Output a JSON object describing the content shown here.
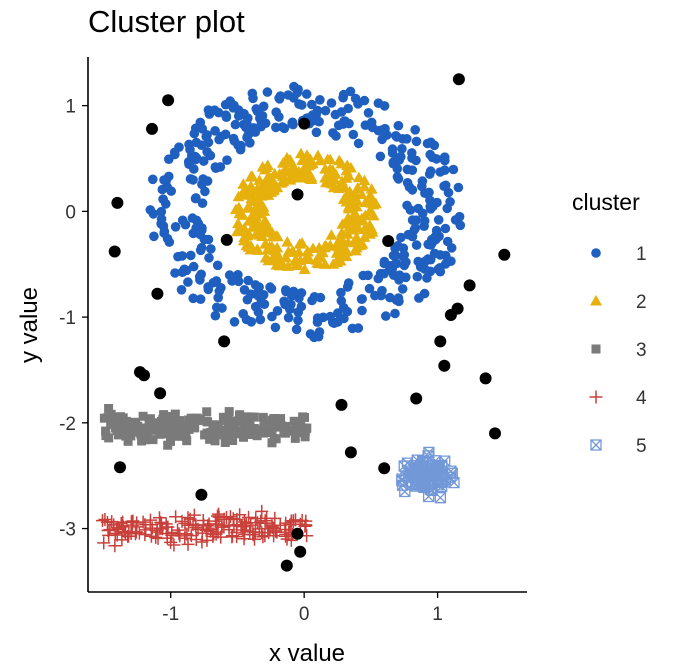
{
  "chart_data": {
    "type": "scatter",
    "title": "Cluster plot",
    "xlabel": "x value",
    "ylabel": "y value",
    "xlim": [
      -1.62,
      1.67
    ],
    "ylim": [
      -3.6,
      1.46
    ],
    "xticks": [
      -1,
      0,
      1
    ],
    "yticks": [
      1,
      0,
      -1,
      -2,
      -3
    ],
    "grid": false,
    "legend_title": "cluster",
    "legend_position": "right",
    "series": [
      {
        "name": "1",
        "shape": "circle",
        "color": "#1f5fbf",
        "shape_desc": "ring",
        "center": [
          0,
          0
        ],
        "radius_inner": 0.75,
        "radius_outer": 1.2,
        "count": 420
      },
      {
        "name": "2",
        "shape": "triangle",
        "color": "#e6b10c",
        "shape_desc": "ring",
        "center": [
          0,
          0
        ],
        "radius_inner": 0.3,
        "radius_outer": 0.55,
        "count": 300
      },
      {
        "name": "3",
        "shape": "square",
        "color": "#7a7a7a",
        "shape_desc": "band",
        "x_range": [
          -1.5,
          0.05
        ],
        "y_center": -2.05,
        "y_spread": 0.2,
        "count": 200
      },
      {
        "name": "4",
        "shape": "plus",
        "color": "#c9403b",
        "shape_desc": "band",
        "x_range": [
          -1.52,
          0.02
        ],
        "y_center": -3.0,
        "y_spread": 0.2,
        "count": 180
      },
      {
        "name": "5",
        "shape": "square-x",
        "color": "#7298d8",
        "shape_desc": "blob",
        "x_range": [
          0.62,
          1.18
        ],
        "y_range": [
          -2.75,
          -2.25
        ],
        "count": 90
      }
    ],
    "outliers": {
      "color": "#000000",
      "points": [
        [
          1.16,
          1.25
        ],
        [
          -1.02,
          1.05
        ],
        [
          -1.14,
          0.78
        ],
        [
          0.0,
          0.83
        ],
        [
          -1.4,
          0.08
        ],
        [
          -0.05,
          0.16
        ],
        [
          -0.58,
          -0.27
        ],
        [
          0.63,
          -0.28
        ],
        [
          -1.42,
          -0.38
        ],
        [
          1.5,
          -0.41
        ],
        [
          1.24,
          -0.7
        ],
        [
          -1.1,
          -0.78
        ],
        [
          1.15,
          -0.92
        ],
        [
          1.1,
          -0.98
        ],
        [
          -0.6,
          -1.23
        ],
        [
          1.02,
          -1.23
        ],
        [
          1.05,
          -1.46
        ],
        [
          -1.23,
          -1.52
        ],
        [
          -1.2,
          -1.55
        ],
        [
          1.36,
          -1.58
        ],
        [
          -1.08,
          -1.72
        ],
        [
          0.84,
          -1.77
        ],
        [
          0.28,
          -1.83
        ],
        [
          1.43,
          -2.1
        ],
        [
          0.35,
          -2.28
        ],
        [
          -1.38,
          -2.42
        ],
        [
          0.6,
          -2.43
        ],
        [
          -0.77,
          -2.68
        ],
        [
          -0.05,
          -3.05
        ],
        [
          -0.03,
          -3.22
        ],
        [
          -0.13,
          -3.35
        ]
      ]
    }
  }
}
